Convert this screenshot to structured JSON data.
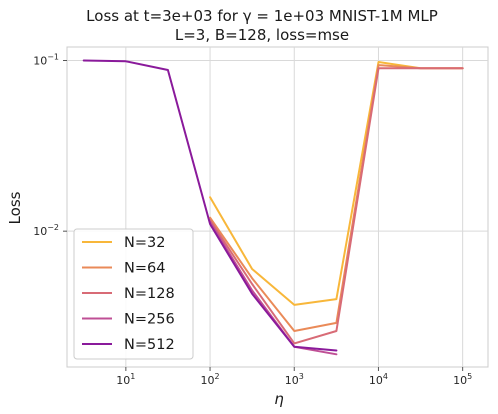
{
  "chart_data": {
    "type": "line",
    "title_line1": "Loss at t=3e+03 for γ = 1e+03 MNIST-1M MLP",
    "title_line2": "L=3, B=128, loss=mse",
    "xlabel": "η",
    "ylabel": "Loss",
    "xscale": "log",
    "yscale": "log",
    "xlim": [
      2.0,
      200000
    ],
    "ylim": [
      0.0016,
      0.12
    ],
    "x_ticks": [
      {
        "base": "10",
        "exp": "1",
        "value": 10
      },
      {
        "base": "10",
        "exp": "2",
        "value": 100
      },
      {
        "base": "10",
        "exp": "3",
        "value": 1000
      },
      {
        "base": "10",
        "exp": "4",
        "value": 10000
      },
      {
        "base": "10",
        "exp": "5",
        "value": 100000
      }
    ],
    "y_ticks": [
      {
        "base": "10",
        "exp": "−1",
        "value": 0.1
      },
      {
        "base": "10",
        "exp": "−2",
        "value": 0.01
      }
    ],
    "grid": true,
    "legend_position": "lower-left",
    "series": [
      {
        "name": "N=32",
        "color": "#f8b73a",
        "x": [
          100,
          316,
          1000,
          3162,
          10000,
          31623,
          100000
        ],
        "y": [
          0.0158,
          0.006,
          0.0037,
          0.004,
          0.098,
          0.09,
          0.09
        ]
      },
      {
        "name": "N=64",
        "color": "#ea8a58",
        "x": [
          100,
          316,
          1000,
          3162,
          10000,
          31623,
          100000
        ],
        "y": [
          0.012,
          0.0053,
          0.0026,
          0.0029,
          0.094,
          0.09,
          0.09
        ]
      },
      {
        "name": "N=128",
        "color": "#d86b76",
        "x": [
          100,
          316,
          1000,
          3162,
          10000,
          31623,
          100000
        ],
        "y": [
          0.0116,
          0.0049,
          0.0022,
          0.0026,
          0.09,
          0.09,
          0.09
        ]
      },
      {
        "name": "N=256",
        "color": "#bf4f95",
        "x": [
          100,
          316,
          1000,
          3162
        ],
        "y": [
          0.0113,
          0.0045,
          0.0021,
          0.0019
        ]
      },
      {
        "name": "N=512",
        "color": "#8a1a9b",
        "x": [
          3.16,
          10,
          31.6,
          100,
          316,
          1000,
          3162
        ],
        "y": [
          0.1,
          0.099,
          0.088,
          0.011,
          0.0043,
          0.0021,
          0.002
        ]
      }
    ]
  }
}
